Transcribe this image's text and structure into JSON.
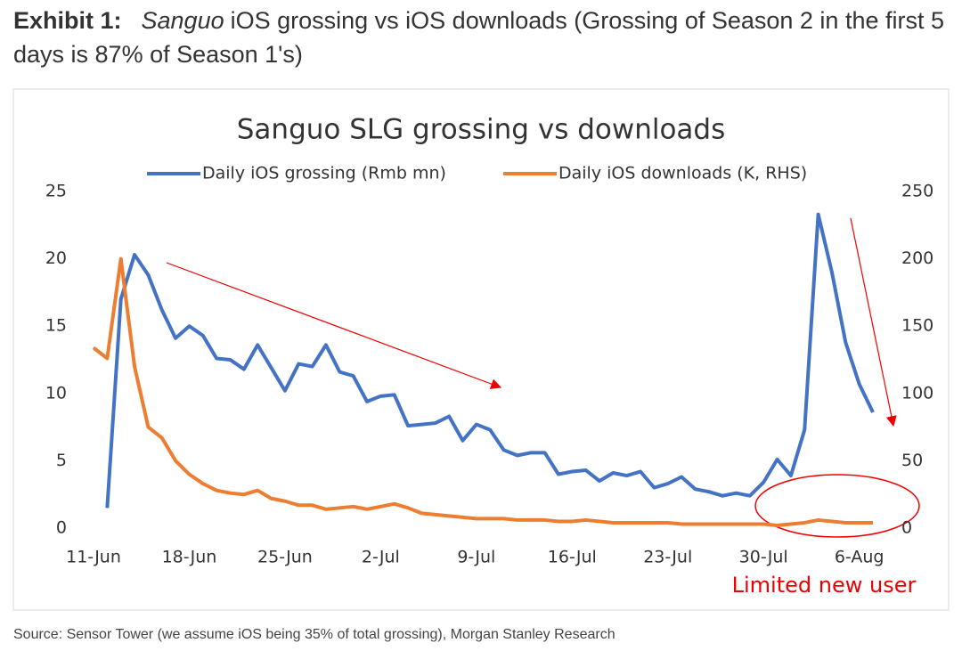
{
  "header": {
    "label": "Exhibit 1:",
    "title_italic": "Sanguo",
    "title": "iOS grossing vs iOS downloads (Grossing of Season 2 in the first 5 days is 87% of Season 1's)"
  },
  "source": "Source: Sensor Tower (we assume iOS being 35% of total grossing), Morgan Stanley Research",
  "chart_data": {
    "type": "line",
    "title": "Sanguo SLG grossing vs downloads",
    "annotation": "Limited new user",
    "categories": [
      "11-Jun",
      null,
      null,
      null,
      null,
      null,
      null,
      "18-Jun",
      null,
      null,
      null,
      null,
      null,
      null,
      "25-Jun",
      null,
      null,
      null,
      null,
      null,
      null,
      "2-Jul",
      null,
      null,
      null,
      null,
      null,
      null,
      "9-Jul",
      null,
      null,
      null,
      null,
      null,
      null,
      "16-Jul",
      null,
      null,
      null,
      null,
      null,
      null,
      "23-Jul",
      null,
      null,
      null,
      null,
      null,
      null,
      "30-Jul",
      null,
      null,
      null,
      null,
      null,
      null,
      "6-Aug",
      null
    ],
    "series": [
      {
        "name": "Daily iOS grossing (Rmb mn)",
        "color": "#4472c4",
        "axis": "y",
        "values": [
          null,
          1.5,
          17,
          20.3,
          18.8,
          16.2,
          14.1,
          15.0,
          14.3,
          12.6,
          12.5,
          11.8,
          13.6,
          11.9,
          10.2,
          12.2,
          12.0,
          13.6,
          11.6,
          11.3,
          9.4,
          9.8,
          9.9,
          7.6,
          7.7,
          7.8,
          8.3,
          6.5,
          7.7,
          7.3,
          5.8,
          5.4,
          5.6,
          5.6,
          4.0,
          4.2,
          4.3,
          3.5,
          4.1,
          3.9,
          4.2,
          3.0,
          3.3,
          3.8,
          2.9,
          2.7,
          2.4,
          2.6,
          2.4,
          3.4,
          5.1,
          3.9,
          7.3,
          23.3,
          19.0,
          13.8,
          10.7,
          8.6
        ]
      },
      {
        "name": "Daily iOS downloads (K, RHS)",
        "color": "#ed7d31",
        "axis": "y2",
        "values": [
          134,
          126,
          200,
          120,
          75,
          67,
          50,
          40,
          33,
          28,
          26,
          25,
          28,
          22,
          20,
          17,
          17,
          14,
          15,
          16,
          14,
          16,
          18,
          15,
          11,
          10,
          9,
          8,
          7,
          7,
          7,
          6,
          6,
          6,
          5,
          5,
          6,
          5,
          4,
          4,
          4,
          4,
          4,
          3,
          3,
          3,
          3,
          3,
          3,
          3,
          2,
          3,
          4,
          6,
          5,
          4,
          4,
          4
        ]
      }
    ],
    "ylim": [
      0,
      25
    ],
    "yticks": [
      0,
      5,
      10,
      15,
      20,
      25
    ],
    "y2lim": [
      0,
      250
    ],
    "y2ticks": [
      0,
      50,
      100,
      150,
      200,
      250
    ],
    "grid": false
  }
}
